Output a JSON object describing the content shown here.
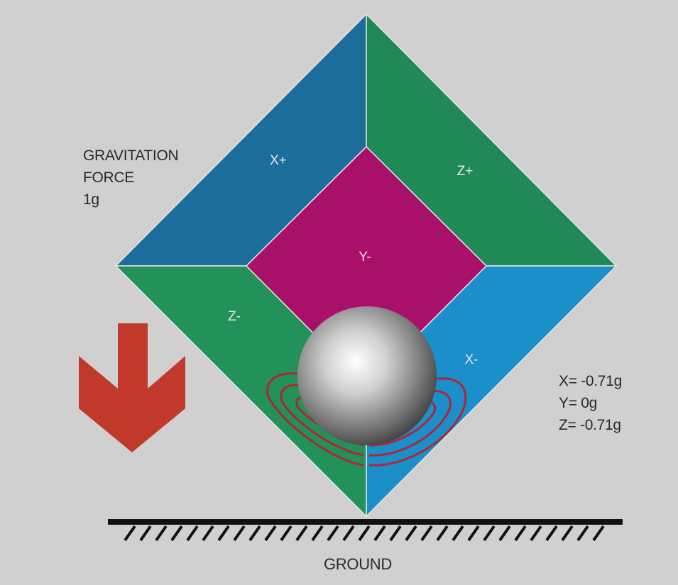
{
  "faces": {
    "x_plus": "X+",
    "z_plus": "Z+",
    "y_minus": "Y-",
    "z_minus": "Z-",
    "x_minus": "X-"
  },
  "gravity": {
    "line1": "GRAVITATION",
    "line2": "FORCE",
    "line3": "1g"
  },
  "readout": {
    "x": "X= -0.71g",
    "y": "Y= 0g",
    "z": "Z= -0.71g"
  },
  "ground": {
    "label": "GROUND"
  },
  "colors": {
    "background": "#d0d0d0",
    "x_plus": "#1d6d9b",
    "z_plus": "#1f8a57",
    "y_minus": "#a8106a",
    "z_minus": "#23915a",
    "x_minus": "#1a8fca",
    "arrow": "#c0392b",
    "field_lines": "#b02535"
  }
}
